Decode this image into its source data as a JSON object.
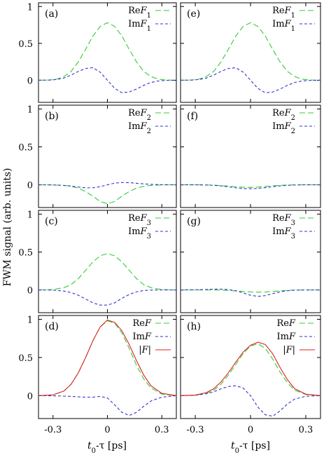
{
  "chart_data": {
    "type": "line",
    "ylabel": "FWM signal (arb. units)",
    "xlabel": "t₀-τ [ps]",
    "xlim": [
      -0.38,
      0.38
    ],
    "xticks": [
      "-0.3",
      "0",
      "0.3"
    ],
    "xtick_values": [
      -0.3,
      0,
      0.3
    ],
    "colors": {
      "re": "#33cc33",
      "im": "#3333cc",
      "abs": "#dd2222"
    },
    "panels": [
      {
        "label": "(a)",
        "ylim": [
          -0.3,
          1.05
        ],
        "yticks": [
          "0",
          "0.5",
          "1"
        ],
        "ytick_values": [
          0,
          0.5,
          1
        ],
        "legend": [
          "ReF₁",
          "ImF₁"
        ],
        "series": [
          {
            "kind": "re",
            "x": [
              -0.38,
              -0.32,
              -0.28,
              -0.24,
              -0.2,
              -0.16,
              -0.12,
              -0.08,
              -0.04,
              0,
              0.04,
              0.08,
              0.12,
              0.16,
              0.2,
              0.24,
              0.28,
              0.32,
              0.38
            ],
            "y": [
              0,
              0.003,
              0.015,
              0.05,
              0.12,
              0.25,
              0.42,
              0.6,
              0.73,
              0.78,
              0.73,
              0.6,
              0.42,
              0.25,
              0.12,
              0.05,
              0.015,
              0.003,
              0
            ]
          },
          {
            "kind": "im",
            "x": [
              -0.38,
              -0.32,
              -0.28,
              -0.24,
              -0.2,
              -0.16,
              -0.12,
              -0.08,
              -0.04,
              0,
              0.04,
              0.08,
              0.12,
              0.16,
              0.2,
              0.24,
              0.28,
              0.32,
              0.38
            ],
            "y": [
              0,
              0.002,
              0.01,
              0.03,
              0.07,
              0.12,
              0.16,
              0.17,
              0.11,
              0,
              -0.11,
              -0.17,
              -0.16,
              -0.12,
              -0.07,
              -0.03,
              -0.01,
              -0.002,
              0
            ]
          }
        ]
      },
      {
        "label": "(b)",
        "ylim": [
          -0.3,
          1.05
        ],
        "yticks": [
          "0",
          "0.5",
          "1"
        ],
        "ytick_values": [
          0,
          0.5,
          1
        ],
        "legend": [
          "ReF₂",
          "ImF₂"
        ],
        "series": [
          {
            "kind": "re",
            "x": [
              -0.38,
              -0.3,
              -0.24,
              -0.2,
              -0.16,
              -0.12,
              -0.08,
              -0.04,
              0,
              0.04,
              0.08,
              0.12,
              0.16,
              0.2,
              0.24,
              0.3,
              0.38
            ],
            "y": [
              0,
              -0.002,
              -0.008,
              -0.02,
              -0.045,
              -0.09,
              -0.15,
              -0.22,
              -0.25,
              -0.22,
              -0.15,
              -0.09,
              -0.045,
              -0.02,
              -0.008,
              -0.002,
              0
            ]
          },
          {
            "kind": "im",
            "x": [
              -0.38,
              -0.3,
              -0.24,
              -0.2,
              -0.16,
              -0.12,
              -0.08,
              -0.04,
              0,
              0.04,
              0.08,
              0.12,
              0.16,
              0.2,
              0.24,
              0.3,
              0.38
            ],
            "y": [
              0,
              -0.002,
              -0.008,
              -0.017,
              -0.03,
              -0.04,
              -0.04,
              -0.025,
              0,
              0.022,
              0.03,
              0.028,
              0.02,
              0.012,
              0.005,
              0.001,
              0
            ]
          }
        ]
      },
      {
        "label": "(c)",
        "ylim": [
          -0.3,
          1.05
        ],
        "yticks": [
          "0",
          "0.5",
          "1"
        ],
        "ytick_values": [
          0,
          0.5,
          1
        ],
        "legend": [
          "ReF₃",
          "ImF₃"
        ],
        "series": [
          {
            "kind": "re",
            "x": [
              -0.38,
              -0.3,
              -0.24,
              -0.2,
              -0.16,
              -0.12,
              -0.08,
              -0.04,
              0,
              0.04,
              0.08,
              0.12,
              0.16,
              0.2,
              0.24,
              0.3,
              0.38
            ],
            "y": [
              0,
              0.005,
              0.03,
              0.07,
              0.15,
              0.26,
              0.37,
              0.45,
              0.48,
              0.45,
              0.37,
              0.26,
              0.15,
              0.07,
              0.03,
              0.005,
              0
            ]
          },
          {
            "kind": "im",
            "x": [
              -0.38,
              -0.3,
              -0.24,
              -0.2,
              -0.16,
              -0.12,
              -0.08,
              -0.04,
              0,
              0.04,
              0.08,
              0.12,
              0.16,
              0.2,
              0.24,
              0.3,
              0.38
            ],
            "y": [
              0,
              -0.002,
              -0.015,
              -0.035,
              -0.07,
              -0.12,
              -0.17,
              -0.2,
              -0.2,
              -0.17,
              -0.11,
              -0.06,
              -0.025,
              -0.008,
              -0.002,
              0,
              0
            ]
          }
        ]
      },
      {
        "label": "(d)",
        "ylim": [
          -0.3,
          1.05
        ],
        "yticks": [
          "0",
          "0.5",
          "1"
        ],
        "ytick_values": [
          0,
          0.5,
          1
        ],
        "legend": [
          "ReF",
          "ImF",
          "|F|"
        ],
        "series": [
          {
            "kind": "re",
            "x": [
              -0.38,
              -0.3,
              -0.24,
              -0.2,
              -0.16,
              -0.12,
              -0.08,
              -0.04,
              0,
              0.04,
              0.08,
              0.12,
              0.16,
              0.2,
              0.24,
              0.3,
              0.38
            ],
            "y": [
              0,
              0.01,
              0.06,
              0.15,
              0.3,
              0.5,
              0.72,
              0.9,
              0.98,
              0.95,
              0.82,
              0.62,
              0.4,
              0.22,
              0.1,
              0.02,
              0
            ]
          },
          {
            "kind": "im",
            "x": [
              -0.38,
              -0.3,
              -0.24,
              -0.2,
              -0.16,
              -0.12,
              -0.08,
              -0.04,
              0,
              0.04,
              0.08,
              0.12,
              0.16,
              0.2,
              0.24,
              0.3,
              0.38
            ],
            "y": [
              0,
              -0.002,
              -0.006,
              -0.01,
              -0.015,
              -0.02,
              -0.02,
              -0.01,
              -0.03,
              -0.12,
              -0.22,
              -0.26,
              -0.22,
              -0.14,
              -0.07,
              -0.02,
              0
            ]
          },
          {
            "kind": "abs",
            "x": [
              -0.38,
              -0.3,
              -0.24,
              -0.2,
              -0.16,
              -0.12,
              -0.08,
              -0.04,
              0,
              0.04,
              0.08,
              0.12,
              0.16,
              0.2,
              0.24,
              0.3,
              0.38
            ],
            "y": [
              0,
              0.01,
              0.06,
              0.15,
              0.3,
              0.5,
              0.72,
              0.9,
              0.99,
              0.96,
              0.85,
              0.67,
              0.46,
              0.27,
              0.13,
              0.03,
              0
            ]
          }
        ]
      },
      {
        "label": "(e)",
        "ylim": [
          -0.3,
          1.05
        ],
        "yticks": [
          "0",
          "0.5",
          "1"
        ],
        "ytick_values": [
          0,
          0.5,
          1
        ],
        "legend": [
          "ReF₁",
          "ImF₁"
        ],
        "series": [
          {
            "kind": "re",
            "x": [
              -0.38,
              -0.32,
              -0.28,
              -0.24,
              -0.2,
              -0.16,
              -0.12,
              -0.08,
              -0.04,
              0,
              0.04,
              0.08,
              0.12,
              0.16,
              0.2,
              0.24,
              0.28,
              0.32,
              0.38
            ],
            "y": [
              0,
              0.003,
              0.015,
              0.05,
              0.12,
              0.25,
              0.42,
              0.6,
              0.73,
              0.78,
              0.73,
              0.6,
              0.42,
              0.25,
              0.12,
              0.05,
              0.015,
              0.003,
              0
            ]
          },
          {
            "kind": "im",
            "x": [
              -0.38,
              -0.32,
              -0.28,
              -0.24,
              -0.2,
              -0.16,
              -0.12,
              -0.08,
              -0.04,
              0,
              0.04,
              0.08,
              0.12,
              0.16,
              0.2,
              0.24,
              0.28,
              0.32,
              0.38
            ],
            "y": [
              0,
              0.002,
              0.01,
              0.03,
              0.07,
              0.12,
              0.16,
              0.17,
              0.11,
              0,
              -0.11,
              -0.17,
              -0.16,
              -0.12,
              -0.07,
              -0.03,
              -0.01,
              -0.002,
              0
            ]
          }
        ]
      },
      {
        "label": "(f)",
        "ylim": [
          -0.3,
          1.05
        ],
        "yticks": [
          "0",
          "0.5",
          "1"
        ],
        "ytick_values": [
          0,
          0.5,
          1
        ],
        "legend": [
          "ReF₂",
          "ImF₂"
        ],
        "series": [
          {
            "kind": "re",
            "x": [
              -0.38,
              -0.3,
              -0.24,
              -0.2,
              -0.16,
              -0.12,
              -0.08,
              -0.04,
              0,
              0.04,
              0.08,
              0.12,
              0.16,
              0.2,
              0.24,
              0.3,
              0.38
            ],
            "y": [
              0,
              0,
              -0.002,
              -0.005,
              -0.01,
              -0.018,
              -0.026,
              -0.032,
              -0.034,
              -0.03,
              -0.022,
              -0.014,
              -0.007,
              -0.003,
              -0.001,
              0,
              0
            ]
          },
          {
            "kind": "im",
            "x": [
              -0.38,
              -0.3,
              -0.24,
              -0.2,
              -0.16,
              -0.12,
              -0.08,
              -0.04,
              0,
              0.04,
              0.08,
              0.12,
              0.16,
              0.2,
              0.24,
              0.3,
              0.38
            ],
            "y": [
              0,
              0,
              -0.003,
              -0.007,
              -0.015,
              -0.028,
              -0.04,
              -0.05,
              -0.052,
              -0.048,
              -0.038,
              -0.026,
              -0.015,
              -0.007,
              -0.003,
              0,
              0
            ]
          }
        ]
      },
      {
        "label": "(g)",
        "ylim": [
          -0.3,
          1.05
        ],
        "yticks": [
          "0",
          "0.5",
          "1"
        ],
        "ytick_values": [
          0,
          0.5,
          1
        ],
        "legend": [
          "ReF₃",
          "ImF₃"
        ],
        "series": [
          {
            "kind": "re",
            "x": [
              -0.38,
              -0.3,
              -0.24,
              -0.2,
              -0.16,
              -0.12,
              -0.08,
              -0.04,
              0,
              0.04,
              0.08,
              0.12,
              0.16,
              0.2,
              0.24,
              0.3,
              0.38
            ],
            "y": [
              0,
              0,
              0,
              -0.001,
              -0.003,
              -0.007,
              -0.013,
              -0.02,
              -0.027,
              -0.03,
              -0.027,
              -0.02,
              -0.012,
              -0.006,
              -0.002,
              0,
              0
            ]
          },
          {
            "kind": "im",
            "x": [
              -0.38,
              -0.3,
              -0.24,
              -0.2,
              -0.16,
              -0.12,
              -0.08,
              -0.04,
              0,
              0.04,
              0.08,
              0.12,
              0.16,
              0.2,
              0.24,
              0.3,
              0.38
            ],
            "y": [
              0,
              0.002,
              0.006,
              0.01,
              0.01,
              0.005,
              -0.01,
              -0.04,
              -0.07,
              -0.085,
              -0.075,
              -0.05,
              -0.025,
              -0.01,
              -0.003,
              0,
              0
            ]
          }
        ]
      },
      {
        "label": "(h)",
        "ylim": [
          -0.3,
          1.05
        ],
        "yticks": [
          "0",
          "0.5",
          "1"
        ],
        "ytick_values": [
          0,
          0.5,
          1
        ],
        "legend": [
          "ReF",
          "ImF",
          "|F|"
        ],
        "series": [
          {
            "kind": "re",
            "x": [
              -0.38,
              -0.3,
              -0.24,
              -0.2,
              -0.16,
              -0.12,
              -0.08,
              -0.04,
              0,
              0.04,
              0.08,
              0.12,
              0.16,
              0.2,
              0.24,
              0.3,
              0.38
            ],
            "y": [
              0,
              0.005,
              0.03,
              0.07,
              0.15,
              0.27,
              0.41,
              0.55,
              0.65,
              0.68,
              0.62,
              0.48,
              0.31,
              0.17,
              0.07,
              0.015,
              0
            ]
          },
          {
            "kind": "im",
            "x": [
              -0.38,
              -0.3,
              -0.24,
              -0.2,
              -0.16,
              -0.12,
              -0.08,
              -0.04,
              0,
              0.04,
              0.08,
              0.12,
              0.16,
              0.2,
              0.24,
              0.3,
              0.38
            ],
            "y": [
              0,
              0.005,
              0.025,
              0.05,
              0.09,
              0.12,
              0.13,
              0.1,
              0.0,
              -0.15,
              -0.25,
              -0.27,
              -0.2,
              -0.11,
              -0.045,
              -0.008,
              0
            ]
          },
          {
            "kind": "abs",
            "x": [
              -0.38,
              -0.3,
              -0.24,
              -0.2,
              -0.16,
              -0.12,
              -0.08,
              -0.04,
              0,
              0.04,
              0.08,
              0.12,
              0.16,
              0.2,
              0.24,
              0.3,
              0.38
            ],
            "y": [
              0,
              0.007,
              0.04,
              0.09,
              0.18,
              0.3,
              0.44,
              0.57,
              0.66,
              0.7,
              0.67,
              0.55,
              0.37,
              0.21,
              0.09,
              0.02,
              0
            ]
          }
        ]
      }
    ]
  }
}
